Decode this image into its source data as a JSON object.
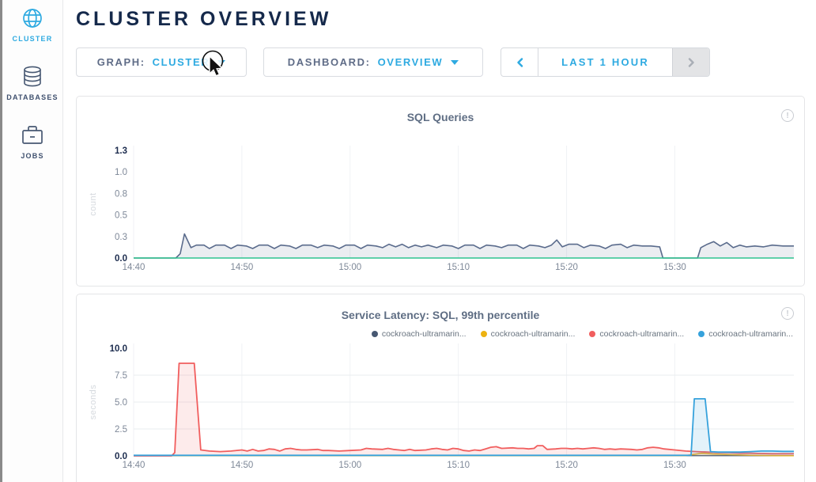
{
  "header": {
    "title": "CLUSTER OVERVIEW"
  },
  "sidebar": {
    "items": [
      {
        "label": "CLUSTER",
        "icon": "globe-icon",
        "active": true
      },
      {
        "label": "DATABASES",
        "icon": "database-icon",
        "active": false
      },
      {
        "label": "JOBS",
        "icon": "briefcase-icon",
        "active": false
      }
    ]
  },
  "controls": {
    "graph": {
      "label": "GRAPH:",
      "value": "CLUSTER"
    },
    "dashboard": {
      "label": "DASHBOARD:",
      "value": "OVERVIEW"
    },
    "timewindow": {
      "label": "LAST 1 HOUR",
      "prev_icon": "chevron-left-icon",
      "next_icon": "chevron-right-icon",
      "next_disabled": true
    }
  },
  "colors": {
    "accent_cyan": "#2eaae1",
    "navy": "#15294b",
    "slate_series": "#5a6b8c",
    "green_series": "#2ec48f",
    "red_series": "#f15e5e",
    "blue_series": "#36a2dc",
    "yellow_series": "#edb211"
  },
  "chart_data": [
    {
      "type": "area",
      "title": "SQL Queries",
      "ylabel": "count",
      "ylim": [
        0,
        1.25
      ],
      "xlim": [
        0,
        61
      ],
      "y_grid": false,
      "legend": false,
      "y_ticks": [
        {
          "v": 0,
          "label": "0.0",
          "bold": true
        },
        {
          "v": 0.25,
          "label": "0.3",
          "bold": false
        },
        {
          "v": 0.5,
          "label": "0.5",
          "bold": false
        },
        {
          "v": 0.75,
          "label": "0.8",
          "bold": false
        },
        {
          "v": 1.0,
          "label": "1.0",
          "bold": false
        },
        {
          "v": 1.25,
          "label": "1.3",
          "bold": true
        }
      ],
      "x_ticks": [
        {
          "t": 0,
          "label": "14:40"
        },
        {
          "t": 10,
          "label": "14:50"
        },
        {
          "t": 20,
          "label": "15:00"
        },
        {
          "t": 30,
          "label": "15:10"
        },
        {
          "t": 40,
          "label": "15:20"
        },
        {
          "t": 50,
          "label": "15:30"
        }
      ],
      "series": [
        {
          "color": "#5a6b8c",
          "width": 1.6,
          "fill_opacity": 0.12,
          "points": [
            [
              0,
              0
            ],
            [
              3.9,
              0
            ],
            [
              4.3,
              0.05
            ],
            [
              4.7,
              0.28
            ],
            [
              5.3,
              0.12
            ],
            [
              5.8,
              0.15
            ],
            [
              6.5,
              0.15
            ],
            [
              7,
              0.11
            ],
            [
              7.6,
              0.15
            ],
            [
              8.4,
              0.15
            ],
            [
              9,
              0.11
            ],
            [
              9.6,
              0.15
            ],
            [
              10.4,
              0.14
            ],
            [
              11,
              0.11
            ],
            [
              11.6,
              0.15
            ],
            [
              12.4,
              0.15
            ],
            [
              13,
              0.11
            ],
            [
              13.6,
              0.15
            ],
            [
              14.4,
              0.14
            ],
            [
              15,
              0.11
            ],
            [
              15.6,
              0.15
            ],
            [
              16.4,
              0.15
            ],
            [
              17,
              0.12
            ],
            [
              17.6,
              0.15
            ],
            [
              18.4,
              0.14
            ],
            [
              19,
              0.11
            ],
            [
              19.6,
              0.15
            ],
            [
              20.4,
              0.15
            ],
            [
              21,
              0.11
            ],
            [
              21.6,
              0.15
            ],
            [
              22.4,
              0.14
            ],
            [
              23,
              0.12
            ],
            [
              23.6,
              0.16
            ],
            [
              24.2,
              0.13
            ],
            [
              24.8,
              0.16
            ],
            [
              25.4,
              0.12
            ],
            [
              26,
              0.15
            ],
            [
              26.6,
              0.13
            ],
            [
              27.2,
              0.15
            ],
            [
              28,
              0.12
            ],
            [
              28.6,
              0.15
            ],
            [
              29.4,
              0.14
            ],
            [
              30,
              0.11
            ],
            [
              30.6,
              0.15
            ],
            [
              31.4,
              0.15
            ],
            [
              32,
              0.11
            ],
            [
              32.6,
              0.15
            ],
            [
              33.4,
              0.14
            ],
            [
              34,
              0.12
            ],
            [
              34.6,
              0.15
            ],
            [
              35.4,
              0.15
            ],
            [
              36,
              0.11
            ],
            [
              36.6,
              0.15
            ],
            [
              37.4,
              0.14
            ],
            [
              38,
              0.12
            ],
            [
              38.6,
              0.15
            ],
            [
              39.1,
              0.21
            ],
            [
              39.6,
              0.13
            ],
            [
              40.2,
              0.16
            ],
            [
              41,
              0.16
            ],
            [
              41.6,
              0.12
            ],
            [
              42.2,
              0.15
            ],
            [
              43,
              0.14
            ],
            [
              43.6,
              0.11
            ],
            [
              44.2,
              0.15
            ],
            [
              45,
              0.16
            ],
            [
              45.6,
              0.12
            ],
            [
              46.2,
              0.15
            ],
            [
              47,
              0.14
            ],
            [
              47.8,
              0.14
            ],
            [
              48.6,
              0.13
            ],
            [
              48.9,
              0
            ],
            [
              52.1,
              0
            ],
            [
              52.4,
              0.12
            ],
            [
              53,
              0.16
            ],
            [
              53.6,
              0.19
            ],
            [
              54.2,
              0.14
            ],
            [
              54.8,
              0.18
            ],
            [
              55.4,
              0.12
            ],
            [
              56,
              0.15
            ],
            [
              56.6,
              0.13
            ],
            [
              57.4,
              0.14
            ],
            [
              58.2,
              0.13
            ],
            [
              59,
              0.15
            ],
            [
              60,
              0.14
            ],
            [
              61,
              0.14
            ]
          ]
        },
        {
          "color": "#2ec48f",
          "width": 1.4,
          "fill_opacity": 0,
          "points": [
            [
              0,
              0
            ],
            [
              61,
              0
            ]
          ]
        }
      ]
    },
    {
      "type": "area",
      "title": "Service Latency: SQL, 99th percentile",
      "ylabel": "seconds",
      "ylim": [
        0,
        10
      ],
      "xlim": [
        0,
        61
      ],
      "y_grid": true,
      "legend": true,
      "y_ticks": [
        {
          "v": 0,
          "label": "0.0",
          "bold": true
        },
        {
          "v": 2.5,
          "label": "2.5",
          "bold": false
        },
        {
          "v": 5,
          "label": "5.0",
          "bold": false
        },
        {
          "v": 7.5,
          "label": "7.5",
          "bold": false
        },
        {
          "v": 10,
          "label": "10.0",
          "bold": true
        }
      ],
      "x_ticks": [
        {
          "t": 0,
          "label": "14:40"
        },
        {
          "t": 10,
          "label": "14:50"
        },
        {
          "t": 20,
          "label": "15:00"
        },
        {
          "t": 30,
          "label": "15:10"
        },
        {
          "t": 40,
          "label": "15:20"
        },
        {
          "t": 50,
          "label": "15:30"
        }
      ],
      "series": [
        {
          "name": "cockroach-ultramarin...",
          "color": "#475872",
          "width": 1.4,
          "fill_opacity": 0,
          "points": [
            [
              0,
              0.02
            ],
            [
              61,
              0.02
            ]
          ]
        },
        {
          "name": "cockroach-ultramarin...",
          "color": "#edb211",
          "width": 1.5,
          "fill_opacity": 0.12,
          "points": [
            [
              0,
              0.03
            ],
            [
              51,
              0.03
            ],
            [
              52.5,
              0.25
            ],
            [
              53.5,
              0.18
            ],
            [
              55,
              0.12
            ],
            [
              57,
              0.06
            ],
            [
              59,
              0.03
            ],
            [
              61,
              0.02
            ]
          ]
        },
        {
          "name": "cockroach-ultramarin...",
          "color": "#f15e5e",
          "width": 1.8,
          "fill_opacity": 0.12,
          "points": [
            [
              0,
              0
            ],
            [
              3.5,
              0
            ],
            [
              3.8,
              0.3
            ],
            [
              4.2,
              8.6
            ],
            [
              5.6,
              8.6
            ],
            [
              6.2,
              0.55
            ],
            [
              7,
              0.45
            ],
            [
              8,
              0.4
            ],
            [
              9,
              0.45
            ],
            [
              10,
              0.55
            ],
            [
              10.5,
              0.45
            ],
            [
              11,
              0.6
            ],
            [
              11.5,
              0.45
            ],
            [
              12,
              0.5
            ],
            [
              12.5,
              0.65
            ],
            [
              13,
              0.6
            ],
            [
              13.5,
              0.45
            ],
            [
              14,
              0.65
            ],
            [
              14.5,
              0.7
            ],
            [
              15,
              0.6
            ],
            [
              15.5,
              0.55
            ],
            [
              16,
              0.55
            ],
            [
              17,
              0.6
            ],
            [
              17.5,
              0.5
            ],
            [
              18,
              0.5
            ],
            [
              19,
              0.45
            ],
            [
              20,
              0.5
            ],
            [
              21,
              0.55
            ],
            [
              21.5,
              0.7
            ],
            [
              22,
              0.65
            ],
            [
              23,
              0.6
            ],
            [
              23.5,
              0.7
            ],
            [
              24,
              0.6
            ],
            [
              24.5,
              0.55
            ],
            [
              25,
              0.5
            ],
            [
              25.5,
              0.6
            ],
            [
              26,
              0.5
            ],
            [
              27,
              0.55
            ],
            [
              27.5,
              0.65
            ],
            [
              28,
              0.7
            ],
            [
              28.5,
              0.6
            ],
            [
              29,
              0.55
            ],
            [
              29.5,
              0.7
            ],
            [
              30,
              0.65
            ],
            [
              30.5,
              0.5
            ],
            [
              31,
              0.45
            ],
            [
              31.5,
              0.55
            ],
            [
              32,
              0.5
            ],
            [
              32.5,
              0.65
            ],
            [
              33,
              0.8
            ],
            [
              33.5,
              0.85
            ],
            [
              34,
              0.7
            ],
            [
              35,
              0.75
            ],
            [
              35.5,
              0.7
            ],
            [
              36,
              0.7
            ],
            [
              36.5,
              0.65
            ],
            [
              37,
              0.7
            ],
            [
              37.3,
              0.95
            ],
            [
              37.8,
              0.95
            ],
            [
              38.2,
              0.6
            ],
            [
              39,
              0.65
            ],
            [
              39.5,
              0.7
            ],
            [
              40,
              0.7
            ],
            [
              40.5,
              0.65
            ],
            [
              41,
              0.7
            ],
            [
              41.5,
              0.65
            ],
            [
              42,
              0.7
            ],
            [
              42.5,
              0.75
            ],
            [
              43,
              0.7
            ],
            [
              43.5,
              0.6
            ],
            [
              44,
              0.65
            ],
            [
              44.5,
              0.6
            ],
            [
              45,
              0.65
            ],
            [
              46,
              0.6
            ],
            [
              46.5,
              0.55
            ],
            [
              47,
              0.6
            ],
            [
              47.5,
              0.75
            ],
            [
              48,
              0.8
            ],
            [
              48.5,
              0.75
            ],
            [
              49,
              0.65
            ],
            [
              50,
              0.55
            ],
            [
              51,
              0.45
            ],
            [
              52,
              0.4
            ],
            [
              53,
              0.35
            ],
            [
              54,
              0.3
            ],
            [
              55,
              0.3
            ],
            [
              56,
              0.25
            ],
            [
              57,
              0.25
            ],
            [
              58,
              0.22
            ],
            [
              59,
              0.2
            ],
            [
              60,
              0.2
            ],
            [
              61,
              0.2
            ]
          ]
        },
        {
          "name": "cockroach-ultramarin...",
          "color": "#36a2dc",
          "width": 1.8,
          "fill_opacity": 0.14,
          "points": [
            [
              0,
              0.05
            ],
            [
              50,
              0.05
            ],
            [
              51.5,
              0.06
            ],
            [
              51.8,
              5.3
            ],
            [
              52.8,
              5.3
            ],
            [
              53.3,
              0.4
            ],
            [
              54,
              0.35
            ],
            [
              55,
              0.35
            ],
            [
              56,
              0.35
            ],
            [
              57,
              0.4
            ],
            [
              58,
              0.45
            ],
            [
              59,
              0.45
            ],
            [
              60,
              0.42
            ],
            [
              61,
              0.42
            ]
          ]
        }
      ]
    }
  ]
}
